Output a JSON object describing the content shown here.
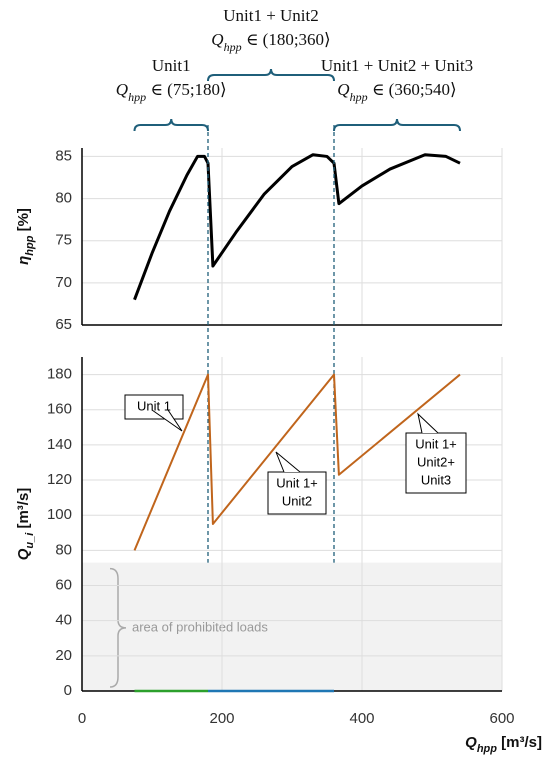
{
  "chart_data": [
    {
      "type": "line",
      "y_label": {
        "symbol": "η",
        "sub": "hpp",
        "unit": " [%]"
      },
      "xlim": [
        0,
        600
      ],
      "xticks": [
        0,
        200,
        400,
        600
      ],
      "ylim": [
        65,
        86
      ],
      "yticks": [
        65,
        70,
        75,
        80,
        85
      ],
      "grid": true,
      "dividers": [
        180,
        360
      ],
      "ranges": [
        {
          "title": "Unit1",
          "symbol": "Q",
          "sub": "hpp",
          "text": " ∈ (75;180⟩",
          "from": 75,
          "to": 180,
          "color": "#1f5f7a"
        },
        {
          "title": "Unit1 + Unit2",
          "symbol": "Q",
          "sub": "hpp",
          "text": " ∈ (180;360⟩",
          "from": 180,
          "to": 360,
          "color": "#1f5f7a"
        },
        {
          "title": "Unit1 + Unit2 + Unit3",
          "symbol": "Q",
          "sub": "hpp",
          "text": " ∈ (360;540⟩",
          "from": 360,
          "to": 540,
          "color": "#1f5f7a"
        }
      ],
      "series": [
        {
          "color": "#000000",
          "x": [
            75,
            100,
            125,
            150,
            165,
            175,
            180,
            187,
            220,
            260,
            300,
            330,
            350,
            360,
            367,
            400,
            440,
            490,
            520,
            540
          ],
          "values": [
            68,
            73.5,
            78.5,
            82.8,
            85,
            85,
            84.2,
            72,
            76,
            80.5,
            83.8,
            85.2,
            85,
            84.2,
            79.4,
            81.5,
            83.5,
            85.2,
            85,
            84.2
          ]
        }
      ]
    },
    {
      "type": "line",
      "x_label": {
        "symbol": "Q",
        "sub": "hpp",
        "unit": " [m³/s]"
      },
      "y_label": {
        "symbol": "Q",
        "sub": "u_i",
        "unit": " [m³/s]"
      },
      "xlim": [
        0,
        600
      ],
      "xticks": [
        0,
        200,
        400,
        600
      ],
      "ylim": [
        0,
        190
      ],
      "yticks": [
        0,
        20,
        40,
        60,
        80,
        100,
        120,
        140,
        160,
        180
      ],
      "grid": true,
      "prohibited": {
        "below": 73,
        "label": "area of prohibited loads"
      },
      "series": [
        {
          "color": "#c0651c",
          "x": [
            75,
            180,
            187,
            360,
            367,
            540
          ],
          "values": [
            80,
            180,
            95,
            180,
            123,
            180
          ]
        },
        {
          "color": "#2ca02c",
          "x": [
            75,
            180
          ],
          "values": [
            0,
            0
          ]
        },
        {
          "color": "#1f77b4",
          "x": [
            180,
            360
          ],
          "values": [
            0,
            0
          ]
        }
      ],
      "callouts": [
        {
          "lines": [
            "Unit 1"
          ]
        },
        {
          "lines": [
            "Unit 1+",
            "Unit2"
          ]
        },
        {
          "lines": [
            "Unit 1+",
            "Unit2+",
            "Unit3"
          ]
        }
      ]
    }
  ]
}
